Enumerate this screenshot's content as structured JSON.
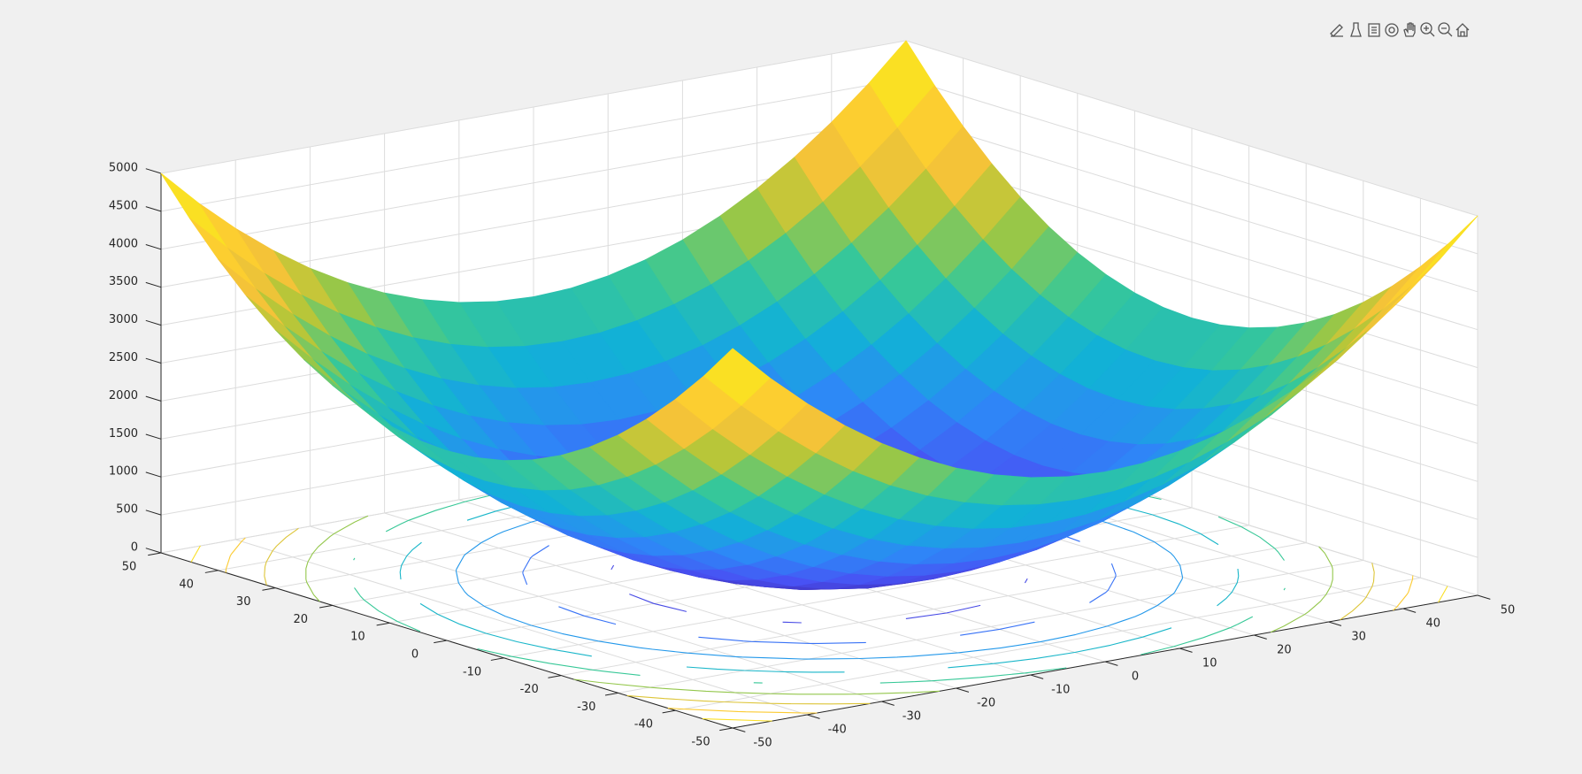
{
  "chart_data": {
    "type": "surface",
    "colormap": "parula",
    "grid": true,
    "x": [
      -50,
      -45,
      -40,
      -35,
      -30,
      -25,
      -20,
      -15,
      -10,
      -5,
      0,
      5,
      10,
      15,
      20,
      25,
      30,
      35,
      40,
      45,
      50
    ],
    "y": [
      -50,
      -45,
      -40,
      -35,
      -30,
      -25,
      -20,
      -15,
      -10,
      -5,
      0,
      5,
      10,
      15,
      20,
      25,
      30,
      35,
      40,
      45,
      50
    ],
    "z": [
      [
        5000,
        4525,
        4100,
        3725,
        3400,
        3125,
        2900,
        2725,
        2600,
        2525,
        2500,
        2525,
        2600,
        2725,
        2900,
        3125,
        3400,
        3725,
        4100,
        4525,
        5000
      ],
      [
        4525,
        4050,
        3625,
        3250,
        2925,
        2650,
        2425,
        2250,
        2125,
        2050,
        2025,
        2050,
        2125,
        2250,
        2425,
        2650,
        2925,
        3250,
        3625,
        4050,
        4525
      ],
      [
        4100,
        3625,
        3200,
        2825,
        2500,
        2225,
        2000,
        1825,
        1700,
        1625,
        1600,
        1625,
        1700,
        1825,
        2000,
        2225,
        2500,
        2825,
        3200,
        3625,
        4100
      ],
      [
        3725,
        3250,
        2825,
        2450,
        2125,
        1850,
        1625,
        1450,
        1325,
        1250,
        1225,
        1250,
        1325,
        1450,
        1625,
        1850,
        2125,
        2450,
        2825,
        3250,
        3725
      ],
      [
        3400,
        2925,
        2500,
        2125,
        1800,
        1525,
        1300,
        1125,
        1000,
        925,
        900,
        925,
        1000,
        1125,
        1300,
        1525,
        1800,
        2125,
        2500,
        2925,
        3400
      ],
      [
        3125,
        2650,
        2225,
        1850,
        1525,
        1250,
        1025,
        850,
        725,
        650,
        625,
        650,
        725,
        850,
        1025,
        1250,
        1525,
        1850,
        2225,
        2650,
        3125
      ],
      [
        2900,
        2425,
        2000,
        1625,
        1300,
        1025,
        800,
        625,
        500,
        425,
        400,
        425,
        500,
        625,
        800,
        1025,
        1300,
        1625,
        2000,
        2425,
        2900
      ],
      [
        2725,
        2250,
        1825,
        1450,
        1125,
        850,
        625,
        450,
        325,
        250,
        225,
        250,
        325,
        450,
        625,
        850,
        1125,
        1450,
        1825,
        2250,
        2725
      ],
      [
        2600,
        2125,
        1700,
        1325,
        1000,
        725,
        500,
        325,
        200,
        125,
        100,
        125,
        200,
        325,
        500,
        725,
        1000,
        1325,
        1700,
        2125,
        2600
      ],
      [
        2525,
        2050,
        1625,
        1250,
        925,
        650,
        425,
        250,
        125,
        50,
        25,
        50,
        125,
        250,
        425,
        650,
        925,
        1250,
        1625,
        2050,
        2525
      ],
      [
        2500,
        2025,
        1600,
        1225,
        900,
        625,
        400,
        225,
        100,
        25,
        0,
        25,
        100,
        225,
        400,
        625,
        900,
        1225,
        1600,
        2025,
        2500
      ],
      [
        2525,
        2050,
        1625,
        1250,
        925,
        650,
        425,
        250,
        125,
        50,
        25,
        50,
        125,
        250,
        425,
        650,
        925,
        1250,
        1625,
        2050,
        2525
      ],
      [
        2600,
        2125,
        1700,
        1325,
        1000,
        725,
        500,
        325,
        200,
        125,
        100,
        125,
        200,
        325,
        500,
        725,
        1000,
        1325,
        1700,
        2125,
        2600
      ],
      [
        2725,
        2250,
        1825,
        1450,
        1125,
        850,
        625,
        450,
        325,
        250,
        225,
        250,
        325,
        450,
        625,
        850,
        1125,
        1450,
        1825,
        2250,
        2725
      ],
      [
        2900,
        2425,
        2000,
        1625,
        1300,
        1025,
        800,
        625,
        500,
        425,
        400,
        425,
        500,
        625,
        800,
        1025,
        1300,
        1625,
        2000,
        2425,
        2900
      ],
      [
        3125,
        2650,
        2225,
        1850,
        1525,
        1250,
        1025,
        850,
        725,
        650,
        625,
        650,
        725,
        850,
        1025,
        1250,
        1525,
        1850,
        2225,
        2650,
        3125
      ],
      [
        3400,
        2925,
        2500,
        2125,
        1800,
        1525,
        1300,
        1125,
        1000,
        925,
        900,
        925,
        1000,
        1125,
        1300,
        1525,
        1800,
        2125,
        2500,
        2925,
        3400
      ],
      [
        3725,
        3250,
        2825,
        2450,
        2125,
        1850,
        1625,
        1450,
        1325,
        1250,
        1225,
        1250,
        1325,
        1450,
        1625,
        1850,
        2125,
        2450,
        2825,
        3250,
        3725
      ],
      [
        4100,
        3625,
        3200,
        2825,
        2500,
        2225,
        2000,
        1825,
        1700,
        1625,
        1600,
        1625,
        1700,
        1825,
        2000,
        2225,
        2500,
        2825,
        3200,
        3625,
        4100
      ],
      [
        4525,
        4050,
        3625,
        3250,
        2925,
        2650,
        2425,
        2250,
        2125,
        2050,
        2025,
        2050,
        2125,
        2250,
        2425,
        2650,
        2925,
        3250,
        3625,
        4050,
        4525
      ],
      [
        5000,
        4525,
        4100,
        3725,
        3400,
        3125,
        2900,
        2725,
        2600,
        2525,
        2500,
        2525,
        2600,
        2725,
        2900,
        3125,
        3400,
        3725,
        4100,
        4525,
        5000
      ]
    ],
    "contour_levels": [
      500,
      1000,
      1500,
      2000,
      2500,
      3000,
      3500,
      4000,
      4500
    ],
    "xlim": [
      -50,
      50
    ],
    "ylim": [
      -50,
      50
    ],
    "zlim": [
      0,
      5000
    ],
    "xticks": [
      -50,
      -40,
      -30,
      -20,
      -10,
      0,
      10,
      20,
      30,
      40,
      50
    ],
    "yticks": [
      -50,
      -40,
      -30,
      -20,
      -10,
      0,
      10,
      20,
      30,
      40,
      50
    ],
    "zticks": [
      0,
      500,
      1000,
      1500,
      2000,
      2500,
      3000,
      3500,
      4000,
      4500,
      5000
    ]
  }
}
